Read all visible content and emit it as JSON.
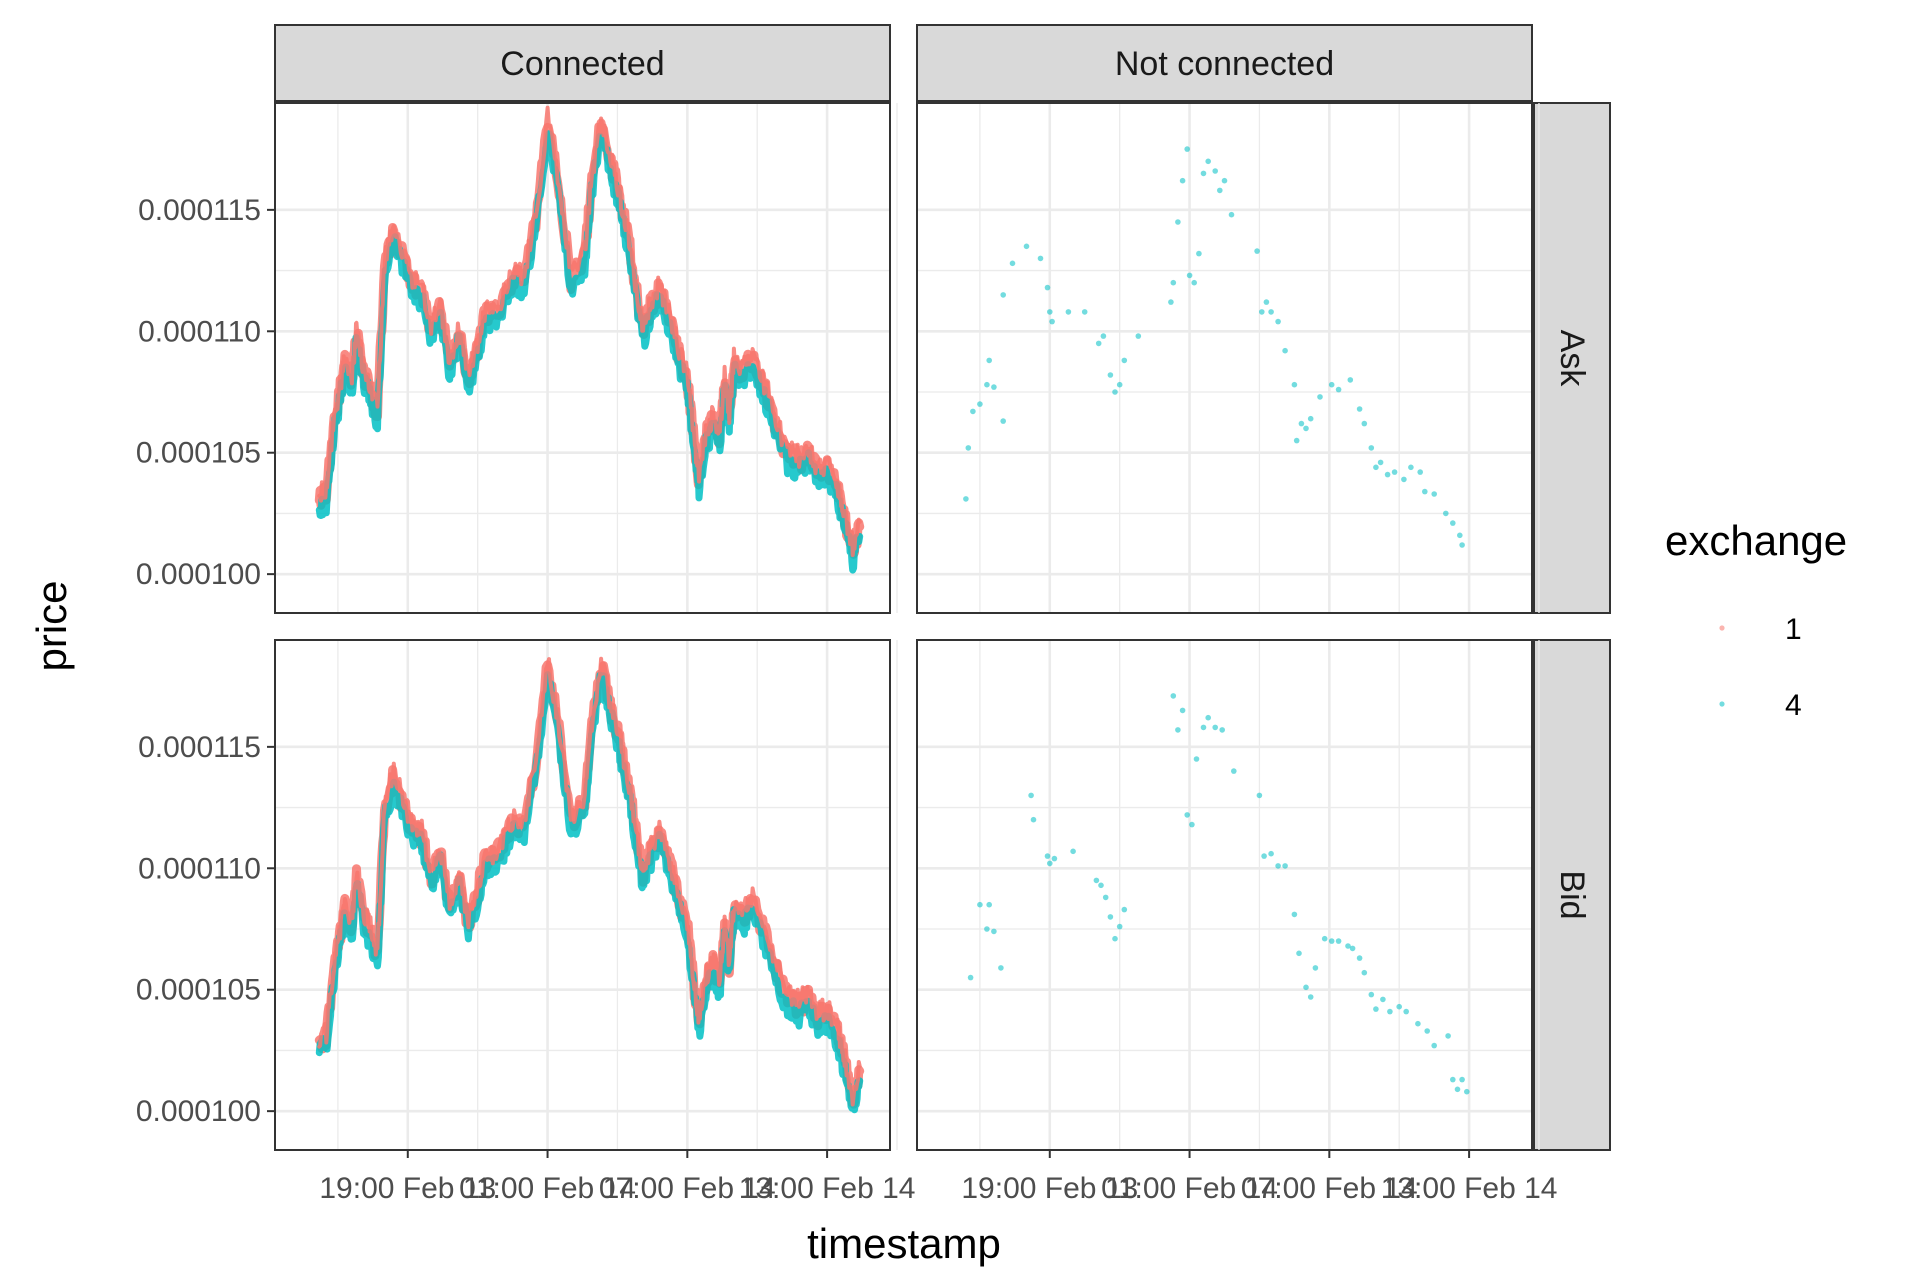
{
  "chart_data": {
    "type": "scatter",
    "facet_cols": [
      "Connected",
      "Not connected"
    ],
    "facet_rows": [
      "Ask",
      "Bid"
    ],
    "xlabel": "timestamp",
    "ylabel": "price",
    "x_tick_labels": [
      "19:00 Feb 13",
      "01:00 Feb 14",
      "07:00 Feb 14",
      "13:00 Feb 14"
    ],
    "x_tick_hours": [
      19,
      25,
      31,
      37
    ],
    "xlim_hours": [
      13.3,
      39.7
    ],
    "y_tick_values": [
      0.0001,
      0.000105,
      0.00011,
      0.000115
    ],
    "y_tick_labels": [
      "0.000100",
      "0.000105",
      "0.000110",
      "0.000115"
    ],
    "ylim": [
      9.84e-05,
      0.0001194
    ],
    "grid": true,
    "legend": {
      "title": "exchange",
      "position": "right",
      "entries": [
        {
          "name": "1",
          "color": "#F8766D"
        },
        {
          "name": "4",
          "color": "#00BFC4"
        }
      ]
    },
    "series": [
      {
        "name": "1",
        "color": "#F8766D"
      },
      {
        "name": "4",
        "color": "#00BFC4"
      }
    ],
    "connected_path_hours": [
      15.2,
      15.5,
      15.8,
      16.1,
      16.3,
      16.6,
      16.8,
      17.1,
      17.4,
      17.7,
      18.0,
      18.4,
      18.8,
      19.2,
      19.6,
      20.0,
      20.4,
      20.8,
      21.2,
      21.6,
      22.0,
      22.3,
      22.6,
      23.0,
      23.5,
      24.0,
      24.5,
      25.0,
      25.5,
      26.0,
      26.6,
      26.9,
      27.3,
      27.7,
      28.0,
      28.2,
      28.5,
      28.8,
      29.1,
      29.4,
      29.8,
      30.2,
      30.6,
      31.0,
      31.3,
      31.5,
      31.8,
      32.1,
      32.4,
      32.6,
      32.8,
      33.0,
      33.4,
      33.8,
      34.3,
      34.8,
      35.3,
      35.8,
      36.2,
      36.6,
      37.0,
      37.4,
      37.6,
      37.8,
      38.1,
      38.4
    ],
    "connected_ask": [
      0.000103,
      0.0001032,
      0.0001058,
      0.0001075,
      0.0001085,
      0.0001078,
      0.0001098,
      0.0001082,
      0.0001075,
      0.0001065,
      0.0001125,
      0.000114,
      0.0001128,
      0.0001118,
      0.0001115,
      0.0001098,
      0.0001108,
      0.0001085,
      0.0001098,
      0.0001078,
      0.0001092,
      0.0001105,
      0.0001105,
      0.000111,
      0.000112,
      0.000112,
      0.0001145,
      0.0001185,
      0.0001158,
      0.000112,
      0.000113,
      0.000116,
      0.0001185,
      0.0001168,
      0.0001158,
      0.0001148,
      0.0001135,
      0.0001115,
      0.0001098,
      0.0001108,
      0.0001115,
      0.0001105,
      0.000109,
      0.0001078,
      0.0001052,
      0.0001038,
      0.0001055,
      0.0001062,
      0.0001055,
      0.0001078,
      0.0001062,
      0.0001085,
      0.0001082,
      0.0001088,
      0.0001075,
      0.000106,
      0.0001048,
      0.0001045,
      0.0001048,
      0.000104,
      0.0001042,
      0.0001035,
      0.0001028,
      0.000102,
      0.0001008,
      0.0001018
    ],
    "connected_bid": [
      0.0001027,
      0.0001029,
      0.0001055,
      0.0001072,
      0.0001082,
      0.0001075,
      0.0001095,
      0.0001079,
      0.0001072,
      0.0001062,
      0.0001122,
      0.0001137,
      0.0001125,
      0.0001115,
      0.0001112,
      0.0001095,
      0.0001105,
      0.0001082,
      0.0001095,
      0.0001075,
      0.0001089,
      0.0001102,
      0.0001102,
      0.0001107,
      0.0001117,
      0.0001117,
      0.0001142,
      0.0001182,
      0.0001155,
      0.0001117,
      0.0001127,
      0.0001157,
      0.0001182,
      0.0001165,
      0.0001155,
      0.0001145,
      0.0001132,
      0.0001112,
      0.0001095,
      0.0001105,
      0.0001112,
      0.0001102,
      0.0001087,
      0.0001075,
      0.0001049,
      0.0001035,
      0.0001052,
      0.0001059,
      0.0001052,
      0.0001075,
      0.0001059,
      0.0001082,
      0.0001079,
      0.0001085,
      0.0001072,
      0.0001057,
      0.0001045,
      0.0001042,
      0.0001045,
      0.0001037,
      0.0001039,
      0.0001032,
      0.0001025,
      0.0001017,
      0.0001003,
      0.0001015
    ],
    "not_connected_ask": [
      [
        15.4,
        0.0001031
      ],
      [
        15.5,
        0.0001052
      ],
      [
        15.7,
        0.0001067
      ],
      [
        16.0,
        0.000107
      ],
      [
        16.3,
        0.0001078
      ],
      [
        16.4,
        0.0001088
      ],
      [
        16.6,
        0.0001077
      ],
      [
        17.0,
        0.0001063
      ],
      [
        17.0,
        0.0001115
      ],
      [
        17.4,
        0.0001128
      ],
      [
        18.0,
        0.0001135
      ],
      [
        18.6,
        0.000113
      ],
      [
        18.9,
        0.0001118
      ],
      [
        19.0,
        0.0001108
      ],
      [
        19.1,
        0.0001104
      ],
      [
        19.8,
        0.0001108
      ],
      [
        20.5,
        0.0001108
      ],
      [
        21.1,
        0.0001095
      ],
      [
        21.3,
        0.0001098
      ],
      [
        21.6,
        0.0001082
      ],
      [
        21.8,
        0.0001075
      ],
      [
        22.0,
        0.0001078
      ],
      [
        22.2,
        0.0001088
      ],
      [
        22.8,
        0.0001098
      ],
      [
        24.2,
        0.0001112
      ],
      [
        24.3,
        0.000112
      ],
      [
        24.5,
        0.0001145
      ],
      [
        24.7,
        0.0001162
      ],
      [
        24.9,
        0.0001175
      ],
      [
        25.0,
        0.0001123
      ],
      [
        25.2,
        0.000112
      ],
      [
        25.4,
        0.0001132
      ],
      [
        25.6,
        0.0001165
      ],
      [
        25.8,
        0.000117
      ],
      [
        26.1,
        0.0001166
      ],
      [
        26.3,
        0.0001158
      ],
      [
        26.5,
        0.0001162
      ],
      [
        26.8,
        0.0001148
      ],
      [
        27.9,
        0.0001133
      ],
      [
        28.1,
        0.0001108
      ],
      [
        28.3,
        0.0001112
      ],
      [
        28.5,
        0.0001108
      ],
      [
        28.8,
        0.0001104
      ],
      [
        29.1,
        0.0001092
      ],
      [
        29.5,
        0.0001078
      ],
      [
        29.6,
        0.0001055
      ],
      [
        29.8,
        0.0001062
      ],
      [
        30.0,
        0.000106
      ],
      [
        30.2,
        0.0001064
      ],
      [
        30.6,
        0.0001073
      ],
      [
        31.1,
        0.0001078
      ],
      [
        31.4,
        0.0001076
      ],
      [
        31.9,
        0.000108
      ],
      [
        32.3,
        0.0001068
      ],
      [
        32.5,
        0.0001062
      ],
      [
        32.8,
        0.0001052
      ],
      [
        33.0,
        0.0001044
      ],
      [
        33.2,
        0.0001046
      ],
      [
        33.5,
        0.0001041
      ],
      [
        33.8,
        0.0001042
      ],
      [
        34.2,
        0.0001039
      ],
      [
        34.5,
        0.0001044
      ],
      [
        34.9,
        0.0001042
      ],
      [
        35.1,
        0.0001034
      ],
      [
        35.5,
        0.0001033
      ],
      [
        36.0,
        0.0001025
      ],
      [
        36.3,
        0.0001021
      ],
      [
        36.6,
        0.0001016
      ],
      [
        36.7,
        0.0001012
      ]
    ],
    "not_connected_bid": [
      [
        15.6,
        0.0001055
      ],
      [
        16.0,
        0.0001085
      ],
      [
        16.3,
        0.0001075
      ],
      [
        16.4,
        0.0001085
      ],
      [
        16.6,
        0.0001074
      ],
      [
        16.9,
        0.0001059
      ],
      [
        18.2,
        0.000113
      ],
      [
        18.3,
        0.000112
      ],
      [
        18.9,
        0.0001105
      ],
      [
        19.0,
        0.0001102
      ],
      [
        19.2,
        0.0001104
      ],
      [
        20.0,
        0.0001107
      ],
      [
        21.0,
        0.0001095
      ],
      [
        21.2,
        0.0001093
      ],
      [
        21.4,
        0.0001088
      ],
      [
        21.6,
        0.000108
      ],
      [
        21.8,
        0.0001071
      ],
      [
        22.0,
        0.0001076
      ],
      [
        22.2,
        0.0001083
      ],
      [
        24.3,
        0.0001171
      ],
      [
        24.5,
        0.0001157
      ],
      [
        24.7,
        0.0001165
      ],
      [
        24.9,
        0.0001122
      ],
      [
        25.1,
        0.0001118
      ],
      [
        25.3,
        0.0001145
      ],
      [
        25.6,
        0.0001158
      ],
      [
        25.8,
        0.0001162
      ],
      [
        26.1,
        0.0001158
      ],
      [
        26.4,
        0.0001157
      ],
      [
        26.9,
        0.000114
      ],
      [
        28.0,
        0.000113
      ],
      [
        28.2,
        0.0001105
      ],
      [
        28.5,
        0.0001106
      ],
      [
        28.8,
        0.0001101
      ],
      [
        29.1,
        0.0001101
      ],
      [
        29.5,
        0.0001081
      ],
      [
        29.7,
        0.0001065
      ],
      [
        30.0,
        0.0001051
      ],
      [
        30.2,
        0.0001047
      ],
      [
        30.4,
        0.0001059
      ],
      [
        30.8,
        0.0001071
      ],
      [
        31.1,
        0.000107
      ],
      [
        31.4,
        0.000107
      ],
      [
        31.8,
        0.0001068
      ],
      [
        32.0,
        0.0001067
      ],
      [
        32.3,
        0.0001063
      ],
      [
        32.5,
        0.0001057
      ],
      [
        32.8,
        0.0001048
      ],
      [
        33.0,
        0.0001042
      ],
      [
        33.3,
        0.0001046
      ],
      [
        33.6,
        0.0001041
      ],
      [
        34.0,
        0.0001043
      ],
      [
        34.3,
        0.0001041
      ],
      [
        34.8,
        0.0001036
      ],
      [
        35.2,
        0.0001033
      ],
      [
        35.5,
        0.0001027
      ],
      [
        36.1,
        0.0001031
      ],
      [
        36.3,
        0.0001013
      ],
      [
        36.5,
        0.0001009
      ],
      [
        36.7,
        0.0001013
      ],
      [
        36.9,
        0.0001008
      ]
    ]
  }
}
